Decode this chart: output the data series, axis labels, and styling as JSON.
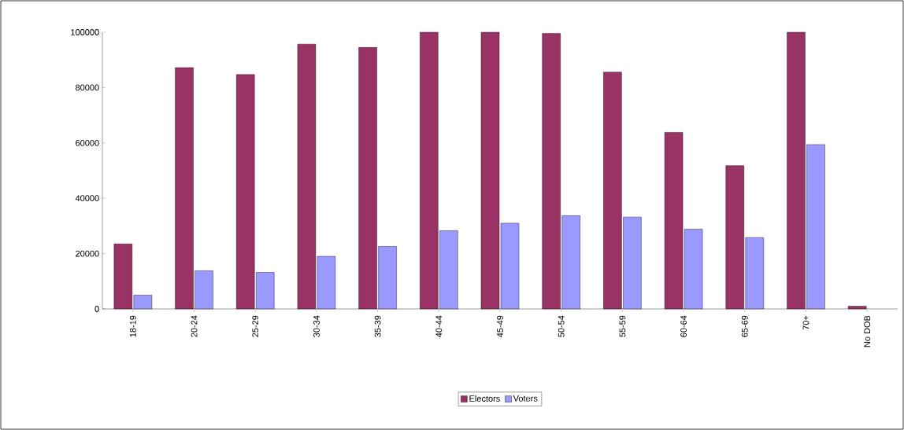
{
  "chart_data": {
    "type": "bar",
    "categories": [
      "18-19",
      "20-24",
      "25-29",
      "30-34",
      "35-39",
      "40-44",
      "45-49",
      "50-54",
      "55-59",
      "60-64",
      "65-69",
      "70+",
      "No DOB"
    ],
    "series": [
      {
        "name": "Electors",
        "color": "#993366",
        "values": [
          23500,
          87200,
          84700,
          95700,
          94500,
          100000,
          100000,
          99600,
          85600,
          63800,
          51800,
          100000,
          1000
        ]
      },
      {
        "name": "Voters",
        "color": "#9999ff",
        "values": [
          5000,
          13800,
          13200,
          19000,
          22600,
          28300,
          31000,
          33700,
          33200,
          28800,
          25800,
          59400,
          null
        ]
      }
    ],
    "ylim": [
      0,
      100000
    ],
    "yticks": [
      0,
      20000,
      40000,
      60000,
      80000,
      100000
    ],
    "grid": false,
    "legend": "bottom"
  }
}
